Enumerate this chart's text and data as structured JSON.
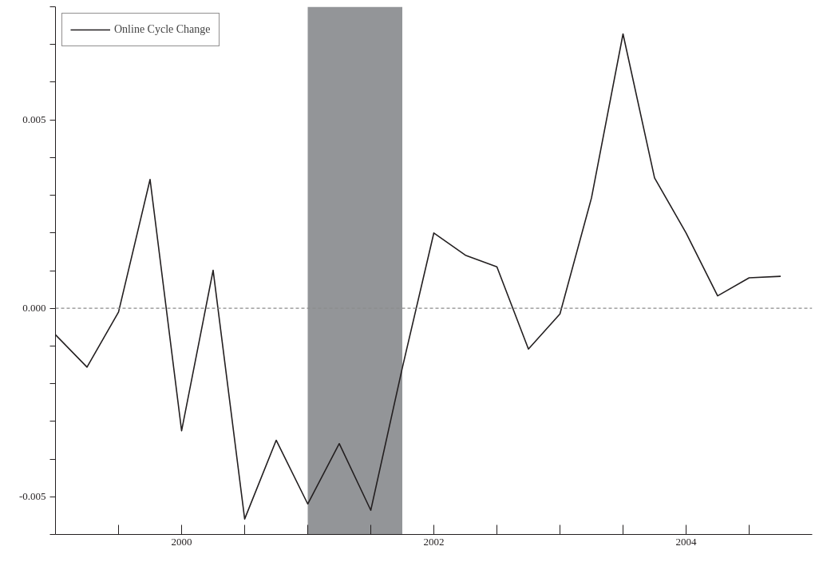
{
  "chart_data": {
    "type": "line",
    "x": [
      1999.0,
      1999.25,
      1999.5,
      1999.75,
      2000.0,
      2000.25,
      2000.5,
      2000.75,
      2001.0,
      2001.25,
      2001.5,
      2001.75,
      2002.0,
      2002.25,
      2002.5,
      2002.75,
      2003.0,
      2003.25,
      2003.5,
      2003.75,
      2004.0,
      2004.25,
      2004.5,
      2004.75
    ],
    "series": [
      {
        "name": "Online Cycle Change",
        "color": "#231f20",
        "values": [
          -0.0007,
          -0.00156,
          -0.0001,
          0.00342,
          -0.00325,
          0.00101,
          -0.00559,
          -0.0035,
          -0.00519,
          -0.00359,
          -0.00536,
          -0.00158,
          0.002,
          0.00141,
          0.0011,
          -0.00108,
          -0.00015,
          0.00293,
          0.00728,
          0.00346,
          0.002,
          0.00033,
          0.00081,
          0.00085
        ]
      }
    ],
    "xlim": [
      1999,
      2005
    ],
    "xticks": [
      {
        "value": 1999.5,
        "label": null
      },
      2000,
      {
        "value": 2000.5,
        "label": null
      },
      {
        "value": 2001,
        "label": null
      },
      {
        "value": 2001.5,
        "label": null
      },
      2002,
      {
        "value": 2002.5,
        "label": null
      },
      {
        "value": 2003,
        "label": null
      },
      {
        "value": 2003.5,
        "label": null
      },
      2004,
      {
        "value": 2004.5,
        "label": null
      }
    ],
    "ylim": [
      -0.006,
      0.008
    ],
    "yticks": [
      {
        "value": -0.006,
        "label": null
      },
      {
        "value": -0.005,
        "label": "-0.005"
      },
      {
        "value": -0.004,
        "label": null
      },
      {
        "value": -0.003,
        "label": null
      },
      {
        "value": -0.002,
        "label": null
      },
      {
        "value": -0.001,
        "label": null
      },
      {
        "value": 0,
        "label": "0.000"
      },
      {
        "value": 0.001,
        "label": null
      },
      {
        "value": 0.002,
        "label": null
      },
      {
        "value": 0.003,
        "label": null
      },
      {
        "value": 0.004,
        "label": null
      },
      {
        "value": 0.005,
        "label": "0.005"
      },
      {
        "value": 0.006,
        "label": null
      },
      {
        "value": 0.007,
        "label": null
      },
      {
        "value": 0.008,
        "label": null
      }
    ],
    "bands": [
      {
        "axis": "x",
        "from": 2001.0,
        "to": 2001.75,
        "color": "#939598"
      }
    ],
    "ref_lines": [
      {
        "axis": "y",
        "value": 0,
        "color": "#8c8c8c",
        "line_style": "dashed"
      }
    ],
    "grid": false,
    "legend": "top left",
    "marker": "none",
    "line_style": "solid"
  }
}
